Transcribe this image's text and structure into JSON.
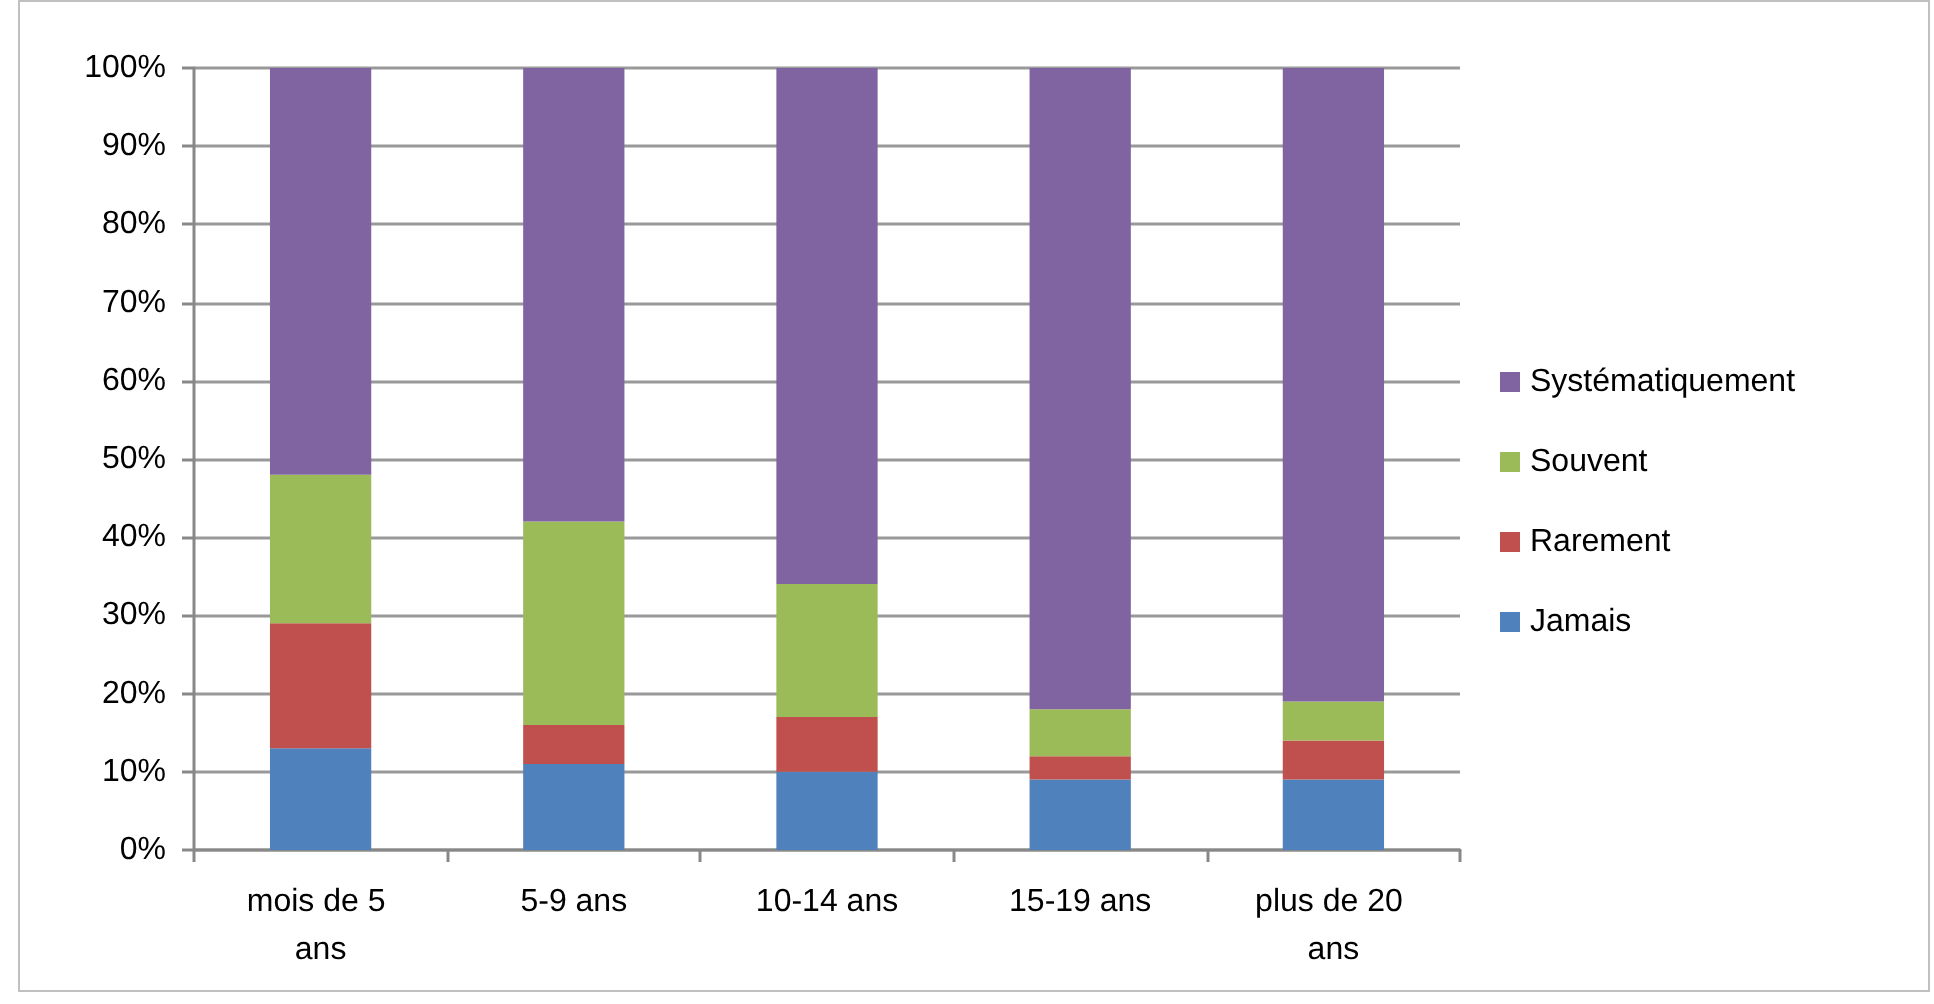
{
  "chart_data": {
    "type": "bar",
    "stacked": true,
    "categories": [
      "mois de 5 ans",
      "5-9 ans",
      "10-14 ans",
      "15-19 ans",
      "plus de 20 ans"
    ],
    "series": [
      {
        "name": "Jamais",
        "color": "#4f81bd",
        "values": [
          13,
          11,
          10,
          9,
          9
        ]
      },
      {
        "name": "Rarement",
        "color": "#c0504d",
        "values": [
          16,
          5,
          7,
          3,
          5
        ]
      },
      {
        "name": "Souvent",
        "color": "#9bbb59",
        "values": [
          19,
          26,
          17,
          6,
          5
        ]
      },
      {
        "name": "Systématiquement",
        "color": "#8064a2",
        "values": [
          52,
          58,
          66,
          82,
          81
        ]
      }
    ],
    "ylim": [
      0,
      100
    ],
    "yticks": [
      {
        "value": 0,
        "label": "0%"
      },
      {
        "value": 10,
        "label": "10%"
      },
      {
        "value": 20,
        "label": "20%"
      },
      {
        "value": 30,
        "label": "30%"
      },
      {
        "value": 40,
        "label": "40%"
      },
      {
        "value": 50,
        "label": "50%"
      },
      {
        "value": 60,
        "label": "60%"
      },
      {
        "value": 70,
        "label": "70%"
      },
      {
        "value": 80,
        "label": "80%"
      },
      {
        "value": 90,
        "label": "90%"
      },
      {
        "value": 100,
        "label": "100%"
      }
    ],
    "grid": "y",
    "legend": "right"
  }
}
